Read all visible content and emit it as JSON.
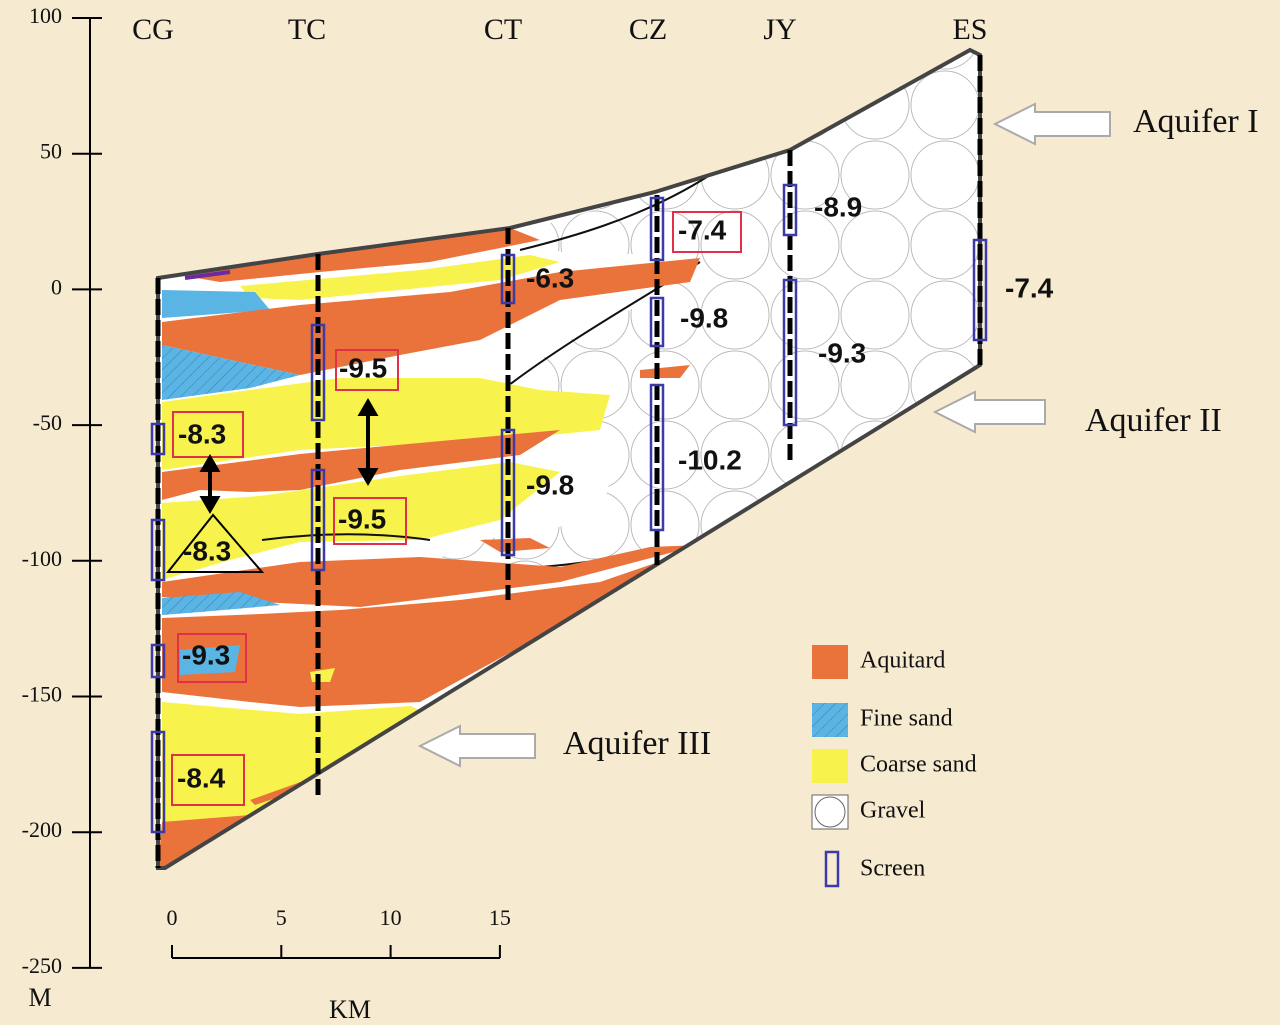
{
  "elevation_axis": {
    "unit": "M",
    "ticks": [
      100,
      50,
      0,
      -50,
      -100,
      -150,
      -200,
      -250
    ]
  },
  "distance_scale": {
    "unit": "KM",
    "ticks": [
      0,
      5,
      10,
      15
    ]
  },
  "wells": [
    {
      "name": "CG",
      "heads": [
        -8.3,
        -8.3,
        -9.3,
        -8.4
      ]
    },
    {
      "name": "TC",
      "heads": [
        -9.5,
        -9.5
      ]
    },
    {
      "name": "CT",
      "heads": [
        -6.3,
        -9.8
      ]
    },
    {
      "name": "CZ",
      "heads": [
        -7.4,
        -9.8,
        -10.2
      ]
    },
    {
      "name": "JY",
      "heads": [
        -8.9,
        -9.3
      ]
    },
    {
      "name": "ES",
      "heads": [
        -7.4
      ]
    }
  ],
  "aquifers": [
    "Aquifer I",
    "Aquifer II",
    "Aquifer III"
  ],
  "legend": [
    "Aquitard",
    "Fine sand",
    "Coarse sand",
    "Gravel",
    "Screen"
  ]
}
